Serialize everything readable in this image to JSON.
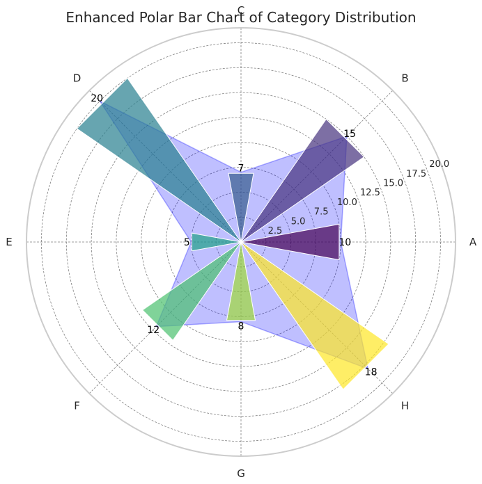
{
  "chart_data": {
    "type": "bar",
    "polar": true,
    "title": "Enhanced Polar Bar Chart of Category Distribution",
    "categories": [
      "A",
      "B",
      "C",
      "D",
      "E",
      "F",
      "G",
      "H"
    ],
    "values": [
      10,
      15,
      7,
      20,
      5,
      12,
      8,
      18
    ],
    "data_labels": [
      "10",
      "15",
      "7",
      "20",
      "5",
      "12",
      "8",
      "18"
    ],
    "radial_ticks": [
      "2.5",
      "5.0",
      "7.5",
      "10.0",
      "12.5",
      "15.0",
      "17.5",
      "20.0"
    ],
    "radial_tick_values": [
      2.5,
      5,
      7.5,
      10,
      12.5,
      15,
      17.5,
      20
    ],
    "rlim": [
      0,
      21.5
    ],
    "grid": true,
    "colors": [
      "#440154",
      "#46327e",
      "#365c8d",
      "#277f8e",
      "#1fa187",
      "#4ac16d",
      "#a0da39",
      "#fde725"
    ],
    "outline_fill_color": "#0000ff",
    "grid_color": "#808080",
    "frame_color": "#cccccc"
  }
}
